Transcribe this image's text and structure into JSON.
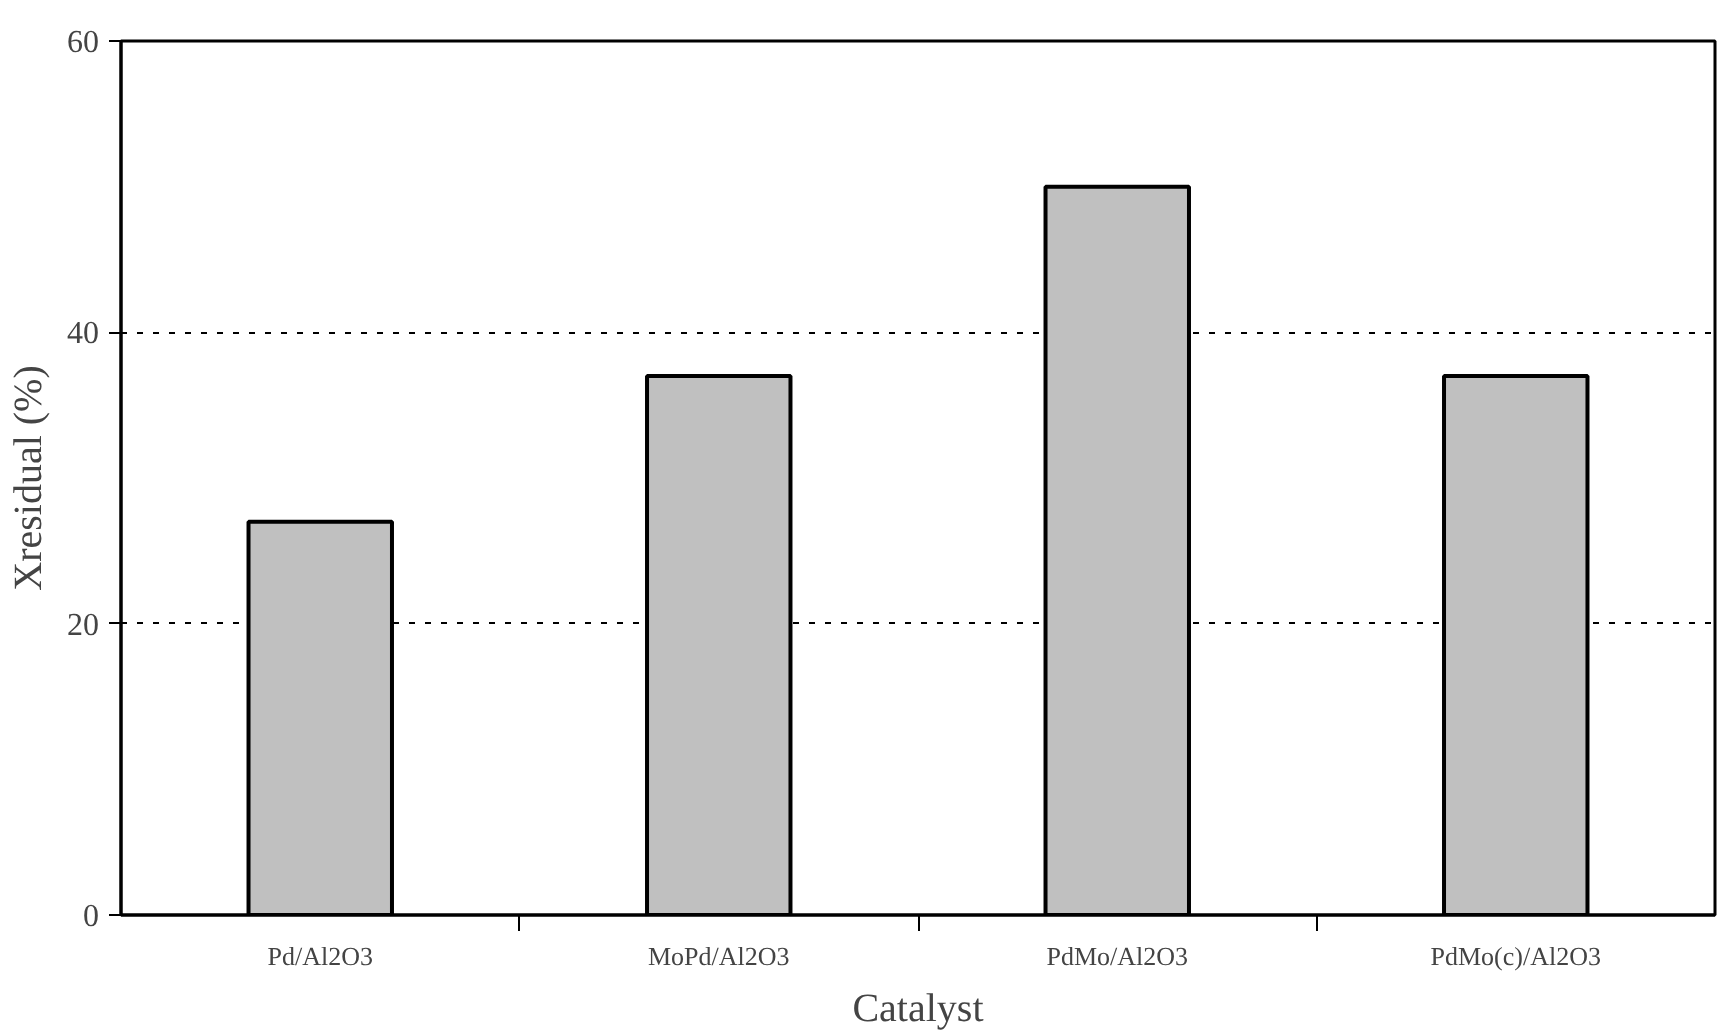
{
  "chart_data": {
    "type": "bar",
    "xlabel": "Catalyst",
    "ylabel": "Xresidual (%)",
    "categories": [
      "Pd/Al2O3",
      "MoPd/Al2O3",
      "PdMo/Al2O3",
      "PdMo(c)/Al2O3"
    ],
    "values": [
      27,
      37,
      50,
      37
    ],
    "color": "#c0c0c0",
    "ylim": [
      0,
      60
    ],
    "yticks": [
      0,
      20,
      40,
      60
    ],
    "grid": "y"
  }
}
